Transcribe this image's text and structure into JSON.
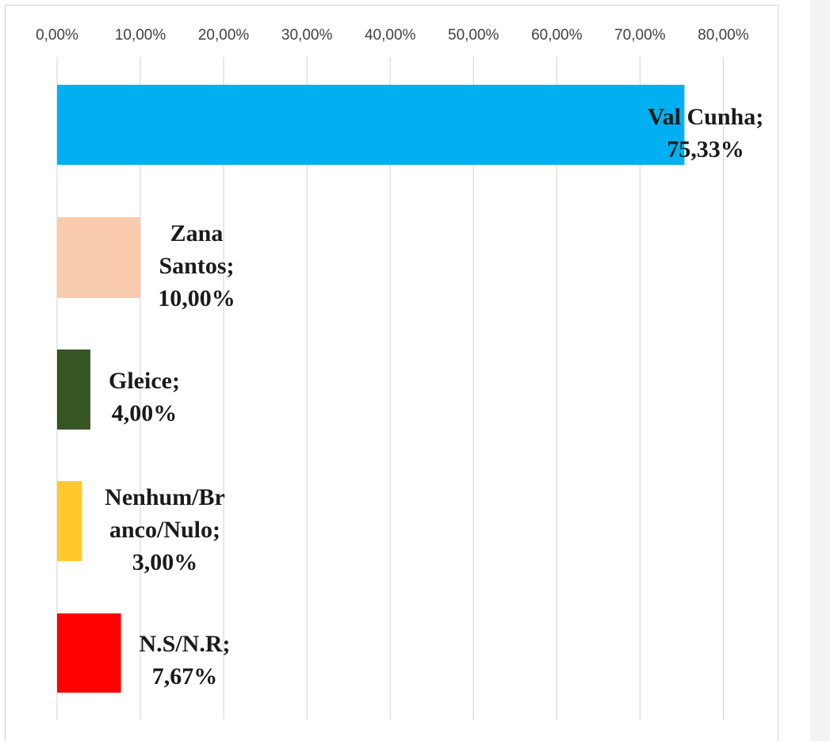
{
  "chart_data": {
    "type": "bar",
    "orientation": "horizontal",
    "categories": [
      "Val Cunha",
      "Zana Santos",
      "Gleice",
      "Nenhum/Branco/Nulo",
      "N.S/N.R"
    ],
    "values": [
      75.33,
      10.0,
      4.0,
      3.0,
      7.67
    ],
    "colors": [
      "#00b0f0",
      "#f8cbad",
      "#375623",
      "#ffc92e",
      "#ff0000"
    ],
    "data_labels": [
      [
        "Val Cunha;",
        "75,33%"
      ],
      [
        "Zana",
        "Santos;",
        "10,00%"
      ],
      [
        "Gleice;",
        "4,00%"
      ],
      [
        "Nenhum/Br",
        "anco/Nulo;",
        "3,00%"
      ],
      [
        "N.S/N.R;",
        "7,67%"
      ]
    ],
    "xlim": [
      0,
      80
    ],
    "x_ticks": [
      0,
      10,
      20,
      30,
      40,
      50,
      60,
      70,
      80
    ],
    "x_tick_labels": [
      "0,00%",
      "10,00%",
      "20,00%",
      "30,00%",
      "40,00%",
      "50,00%",
      "60,00%",
      "70,00%",
      "80,00%"
    ],
    "x_axis_position": "top",
    "grid": true,
    "legend": "none",
    "title": "",
    "xlabel": "",
    "ylabel": ""
  }
}
